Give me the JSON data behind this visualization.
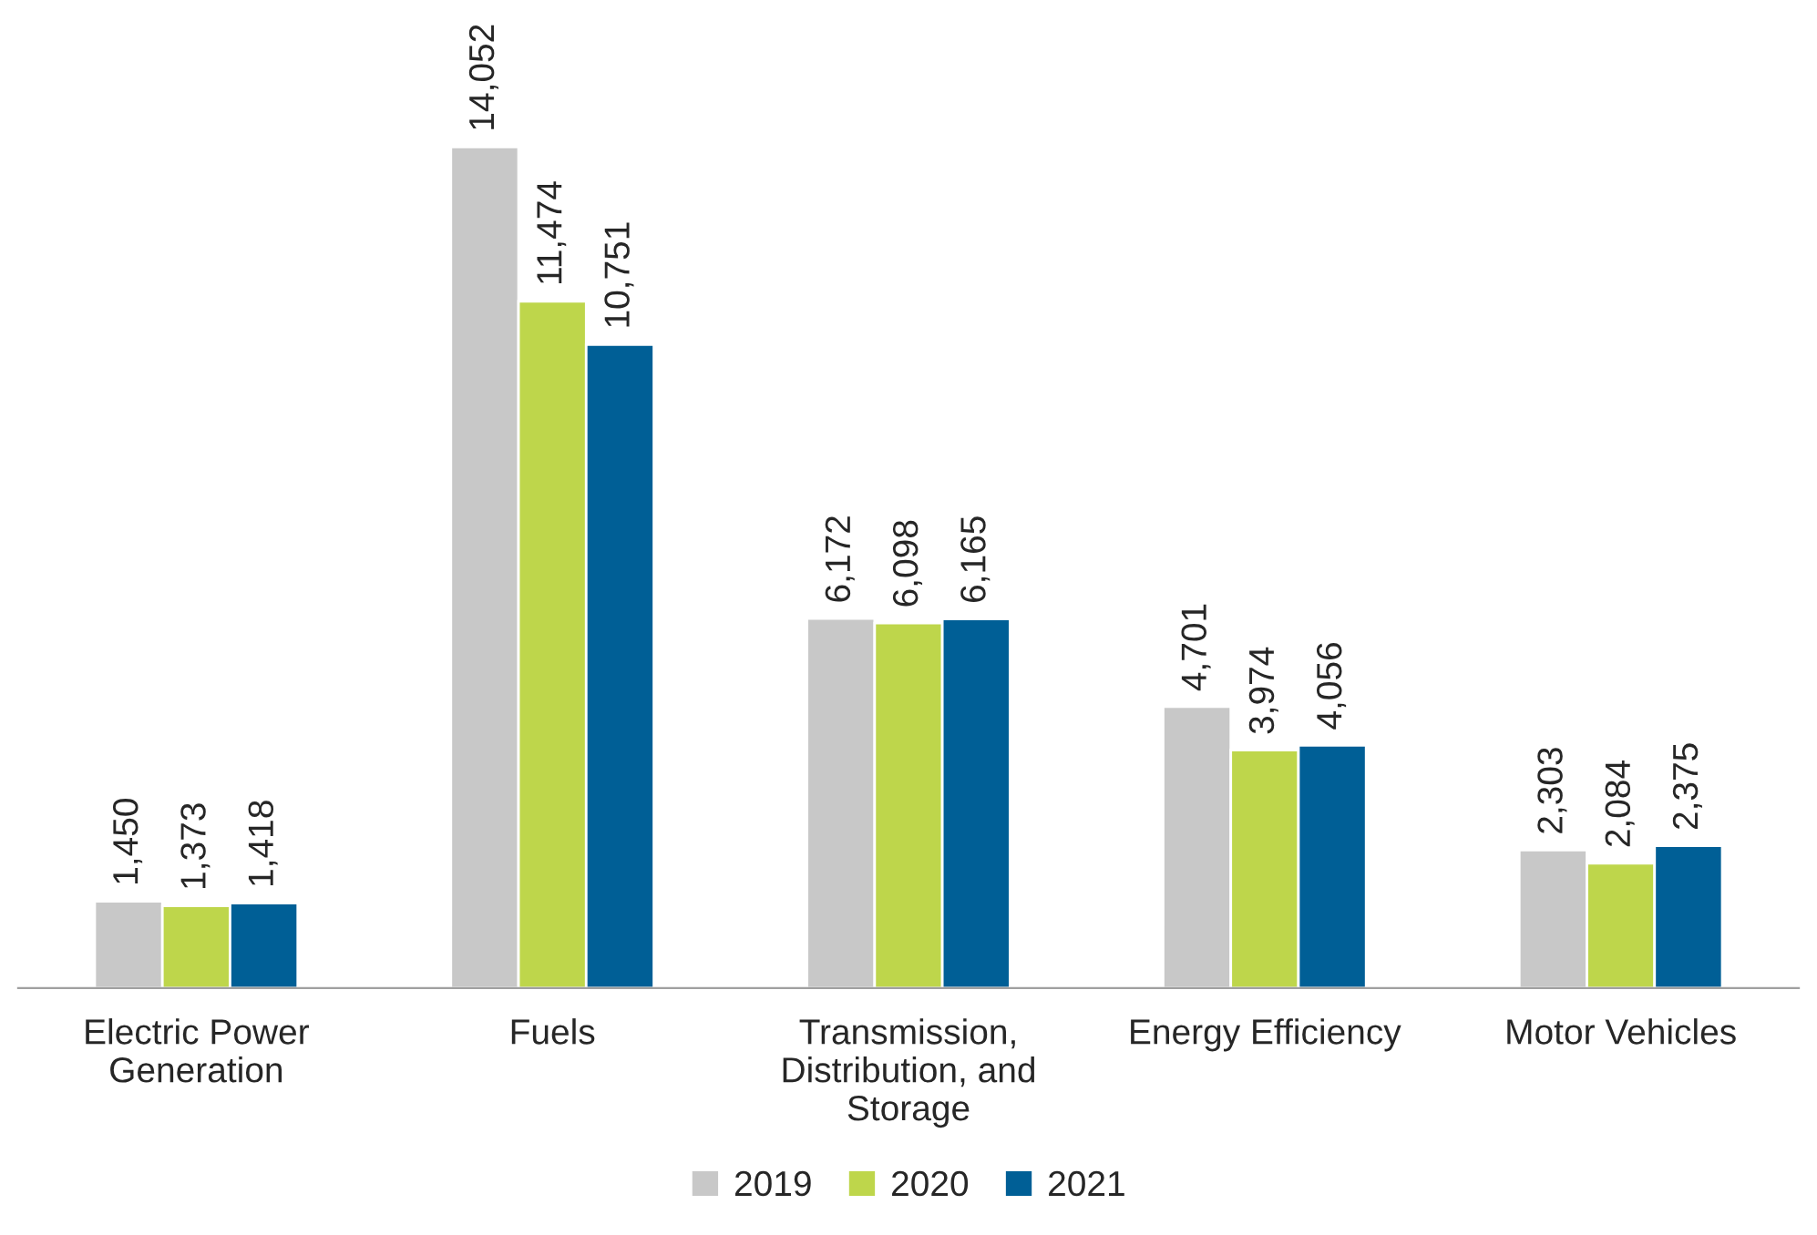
{
  "chart_data": {
    "type": "bar",
    "categories": [
      "Electric Power\nGeneration",
      "Fuels",
      "Transmission,\nDistribution, and\nStorage",
      "Energy Efficiency",
      "Motor Vehicles"
    ],
    "series": [
      {
        "name": "2019",
        "color": "#c8c8c8",
        "values": [
          1450,
          14052,
          6172,
          4701,
          2303
        ],
        "value_labels": [
          "1,450",
          "14,052",
          "6,172",
          "4,701",
          "2,303"
        ]
      },
      {
        "name": "2020",
        "color": "#bed64b",
        "values": [
          1373,
          11474,
          6098,
          3974,
          2084
        ],
        "value_labels": [
          "1,373",
          "11,474",
          "6,098",
          "3,974",
          "2,084"
        ]
      },
      {
        "name": "2021",
        "color": "#005f96",
        "values": [
          1418,
          10751,
          6165,
          4056,
          2375
        ],
        "value_labels": [
          "1,418",
          "10,751",
          "6,165",
          "4,056",
          "2,375"
        ]
      }
    ],
    "legend": "bottom"
  }
}
